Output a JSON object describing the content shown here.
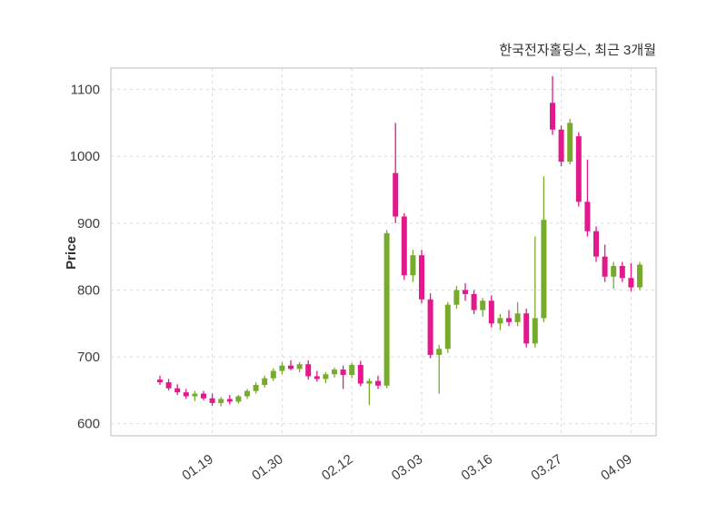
{
  "chart": {
    "title": "한국전자홀딩스, 최근 3개월",
    "ylabel": "Price"
  },
  "chart_data": {
    "type": "candlestick",
    "title": "한국전자홀딩스, 최근 3개월",
    "xlabel": "",
    "ylabel": "Price",
    "ylim": [
      582,
      1132
    ],
    "y_ticks": [
      600,
      700,
      800,
      900,
      1000,
      1100
    ],
    "x_ticks": [
      {
        "index": 6,
        "label": "01.19"
      },
      {
        "index": 14,
        "label": "01.30"
      },
      {
        "index": 22,
        "label": "02.12"
      },
      {
        "index": 30,
        "label": "03.03"
      },
      {
        "index": 38,
        "label": "03.16"
      },
      {
        "index": 46,
        "label": "03.27"
      },
      {
        "index": 54,
        "label": "04.09"
      }
    ],
    "grid": "dashed",
    "legend": "none",
    "candles_format": [
      "open",
      "high",
      "low",
      "close"
    ],
    "candles": [
      [
        666,
        672,
        658,
        662
      ],
      [
        662,
        667,
        650,
        653
      ],
      [
        653,
        659,
        643,
        647
      ],
      [
        647,
        652,
        637,
        641
      ],
      [
        641,
        649,
        634,
        645
      ],
      [
        645,
        649,
        635,
        638
      ],
      [
        638,
        645,
        627,
        631
      ],
      [
        631,
        640,
        626,
        637
      ],
      [
        637,
        643,
        629,
        633
      ],
      [
        633,
        643,
        630,
        641
      ],
      [
        641,
        652,
        637,
        649
      ],
      [
        649,
        662,
        645,
        658
      ],
      [
        658,
        672,
        654,
        668
      ],
      [
        668,
        683,
        664,
        679
      ],
      [
        679,
        692,
        674,
        687
      ],
      [
        687,
        695,
        680,
        682
      ],
      [
        682,
        692,
        677,
        689
      ],
      [
        689,
        695,
        666,
        671
      ],
      [
        671,
        679,
        663,
        667
      ],
      [
        667,
        677,
        661,
        674
      ],
      [
        674,
        684,
        669,
        681
      ],
      [
        681,
        687,
        652,
        673
      ],
      [
        673,
        691,
        668,
        688
      ],
      [
        688,
        694,
        656,
        660
      ],
      [
        660,
        668,
        628,
        664
      ],
      [
        664,
        672,
        652,
        657
      ],
      [
        657,
        890,
        653,
        885
      ],
      [
        975,
        1050,
        900,
        910
      ],
      [
        910,
        915,
        815,
        822
      ],
      [
        822,
        860,
        812,
        852
      ],
      [
        852,
        860,
        780,
        786
      ],
      [
        786,
        795,
        698,
        703
      ],
      [
        703,
        718,
        645,
        712
      ],
      [
        712,
        782,
        706,
        778
      ],
      [
        778,
        806,
        772,
        800
      ],
      [
        800,
        810,
        784,
        794
      ],
      [
        794,
        800,
        764,
        770
      ],
      [
        770,
        788,
        760,
        784
      ],
      [
        784,
        792,
        744,
        750
      ],
      [
        750,
        764,
        740,
        758
      ],
      [
        758,
        770,
        746,
        752
      ],
      [
        752,
        782,
        746,
        765
      ],
      [
        765,
        772,
        714,
        720
      ],
      [
        720,
        880,
        714,
        758
      ],
      [
        758,
        970,
        752,
        905
      ],
      [
        1080,
        1120,
        1032,
        1040
      ],
      [
        1040,
        1046,
        985,
        992
      ],
      [
        992,
        1056,
        988,
        1050
      ],
      [
        1030,
        1036,
        925,
        932
      ],
      [
        932,
        995,
        880,
        888
      ],
      [
        888,
        895,
        842,
        850
      ],
      [
        850,
        868,
        812,
        820
      ],
      [
        820,
        842,
        802,
        836
      ],
      [
        836,
        842,
        812,
        818
      ],
      [
        818,
        840,
        798,
        804
      ],
      [
        804,
        842,
        800,
        838
      ]
    ],
    "colors": {
      "up": "#77ab2b",
      "down": "#e2188c",
      "grid": "#d9d9d9",
      "border": "#c9c9c9",
      "tick_text": "#3d3d3d",
      "title_text": "#2f2f2f",
      "background": "#ffffff"
    }
  }
}
